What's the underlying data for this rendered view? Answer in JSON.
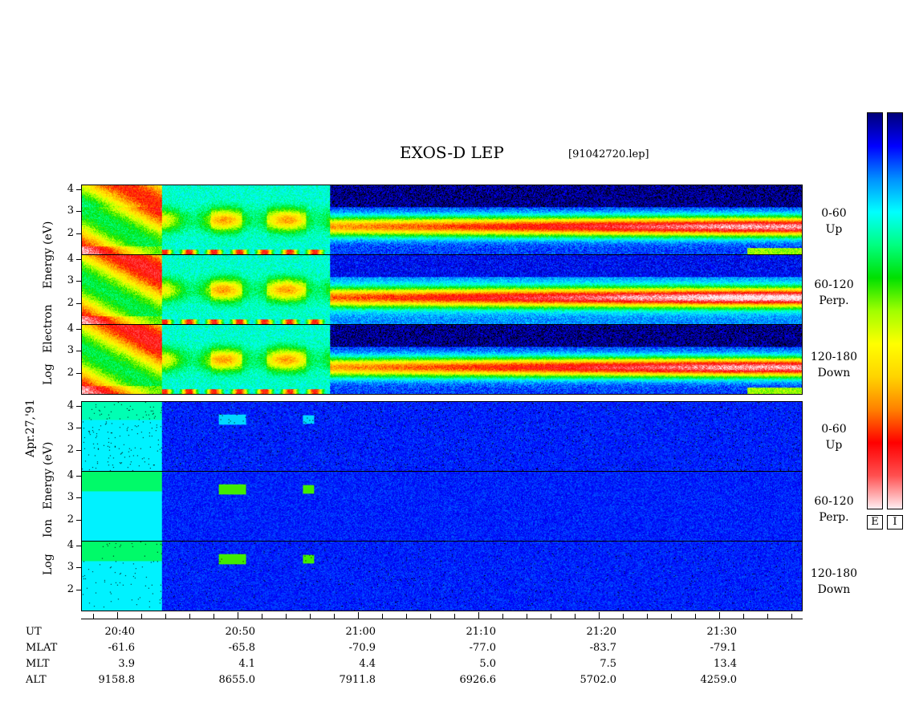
{
  "header": {
    "title": "EXOS-D LEP",
    "filename": "[91042720.lep]"
  },
  "date_label": "Apr.27,'91",
  "electron_axis": [
    "Log",
    "Electron",
    "Energy",
    "(eV)"
  ],
  "ion_axis": [
    "Log",
    "Ion",
    "Energy",
    "(eV)"
  ],
  "colorbar": {
    "labels": [
      "E",
      "I"
    ],
    "colors": [
      "#ffeef2",
      "#ff5050",
      "#ff0000",
      "#ff8000",
      "#ffd400",
      "#ffff00",
      "#a0ff00",
      "#00e000",
      "#00ff80",
      "#00ffff",
      "#0090ff",
      "#0000ff",
      "#00007a"
    ]
  },
  "chart_data": {
    "type": "heatmap",
    "title": "EXOS-D LEP",
    "ylabel_electron": "Log Electron Energy (eV)",
    "ylabel_ion": "Log Ion Energy (eV)",
    "ylim": [
      1,
      4.2
    ],
    "y_ticks": [
      "4",
      "3",
      "2"
    ],
    "x_ticks": [
      "20:40",
      "20:50",
      "21:00",
      "21:10",
      "21:20",
      "21:30"
    ],
    "panels": [
      {
        "species": "Electron",
        "angle": "0-60",
        "direction": "Up"
      },
      {
        "species": "Electron",
        "angle": "60-120",
        "direction": "Perp."
      },
      {
        "species": "Electron",
        "angle": "120-180",
        "direction": "Down"
      },
      {
        "species": "Ion",
        "angle": "0-60",
        "direction": "Up"
      },
      {
        "species": "Ion",
        "angle": "60-120",
        "direction": "Perp."
      },
      {
        "species": "Ion",
        "angle": "120-180",
        "direction": "Down"
      }
    ],
    "orbit_table": {
      "row_labels": [
        "UT",
        "MLAT",
        "MLT",
        "ALT"
      ],
      "UT": [
        "20:40",
        "20:50",
        "21:00",
        "21:10",
        "21:20",
        "21:30"
      ],
      "MLAT": [
        "-61.6",
        "-65.8",
        "-70.9",
        "-77.0",
        "-83.7",
        "-79.1"
      ],
      "MLT": [
        "3.9",
        "4.1",
        "4.4",
        "5.0",
        "7.5",
        "13.4"
      ],
      "ALT": [
        "9158.8",
        "8655.0",
        "7911.8",
        "6926.6",
        "5702.0",
        "4259.0"
      ]
    }
  }
}
